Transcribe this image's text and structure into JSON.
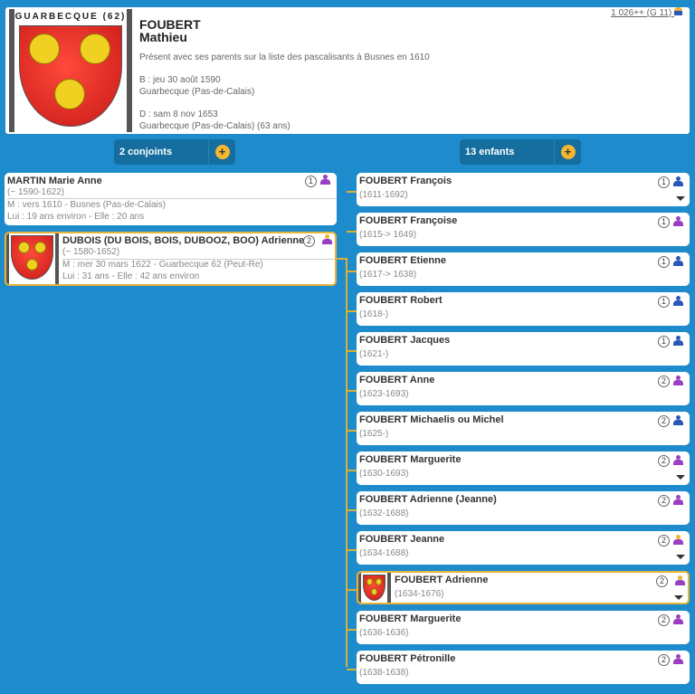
{
  "colors": {
    "male": "#2a59b5",
    "female": "#9a3fc2",
    "mixed_head": "#f2b230",
    "accent": "#f3b731",
    "bg": "#1e8ccc"
  },
  "person": {
    "crest_town": "GUARBECQUE (62)",
    "surname": "FOUBERT",
    "given": "Mathieu",
    "note": "Présent avec ses parents sur la liste des pascalisants à Busnes en 1610",
    "birth": "B : jeu 30 août 1590",
    "birth_place": "Guarbecque (Pas-de-Calais)",
    "death": "D : sam 8 nov 1653",
    "death_place": "Guarbecque (Pas-de-Calais) (63 ans)",
    "sosa": "1 026++ (G 11)",
    "sosa_icon": "person-icon"
  },
  "spouses_header": {
    "label": "2 conjoints",
    "add": "+"
  },
  "children_header": {
    "label": "13 enfants",
    "add": "+"
  },
  "spouses": [
    {
      "name": "MARTIN Marie Anne",
      "dates": "(~ 1590-1622)",
      "marriage": "M : vers 1610 - Busnes (Pas-de-Calais)",
      "ages": "Lui : 19 ans environ - Elle : 20 ans",
      "num": "1",
      "sex": "female",
      "crest": false,
      "selected": false
    },
    {
      "name": "DUBOIS (DU BOIS, BOIS, DUBOOZ, BOO) Adrienne",
      "dates": "(~ 1580-1652)",
      "marriage": "M : mer 30 mars 1622 - Guarbecque 62 (Peut-Re)",
      "ages": "Lui : 31 ans - Elle : 42 ans environ",
      "num": "2",
      "sex": "mixed",
      "crest": true,
      "selected": true
    }
  ],
  "children": [
    {
      "name": "FOUBERT François",
      "dates": "(1611-1692)",
      "num": "1",
      "sex": "male",
      "arrow": true
    },
    {
      "name": "FOUBERT Françoise",
      "dates": "(1615-> 1649)",
      "num": "1",
      "sex": "female",
      "arrow": false
    },
    {
      "name": "FOUBERT Etienne",
      "dates": "(1617-> 1638)",
      "num": "1",
      "sex": "male",
      "arrow": false
    },
    {
      "name": "FOUBERT Robert",
      "dates": "(1618-)",
      "num": "1",
      "sex": "male",
      "arrow": false
    },
    {
      "name": "FOUBERT Jacques",
      "dates": "(1621-)",
      "num": "1",
      "sex": "male",
      "arrow": false
    },
    {
      "name": "FOUBERT Anne",
      "dates": "(1623-1693)",
      "num": "2",
      "sex": "female",
      "arrow": false
    },
    {
      "name": "FOUBERT Michaelis ou Michel",
      "dates": "(1625-)",
      "num": "2",
      "sex": "male",
      "arrow": false
    },
    {
      "name": "FOUBERT Marguerite",
      "dates": "(1630-1693)",
      "num": "2",
      "sex": "female",
      "arrow": true
    },
    {
      "name": "FOUBERT Adrienne (Jeanne)",
      "dates": "(1632-1688)",
      "num": "2",
      "sex": "female",
      "arrow": false
    },
    {
      "name": "FOUBERT Jeanne",
      "dates": "(1634-1688)",
      "num": "2",
      "sex": "mixed",
      "arrow": true
    },
    {
      "name": "FOUBERT Adrienne",
      "dates": "(1634-1676)",
      "num": "2",
      "sex": "mixed",
      "arrow": true,
      "crest": true,
      "selected": true
    },
    {
      "name": "FOUBERT Marguerite",
      "dates": "(1636-1636)",
      "num": "2",
      "sex": "female",
      "arrow": false
    },
    {
      "name": "FOUBERT Pétronille",
      "dates": "(1638-1638)",
      "num": "2",
      "sex": "female",
      "arrow": false
    }
  ]
}
